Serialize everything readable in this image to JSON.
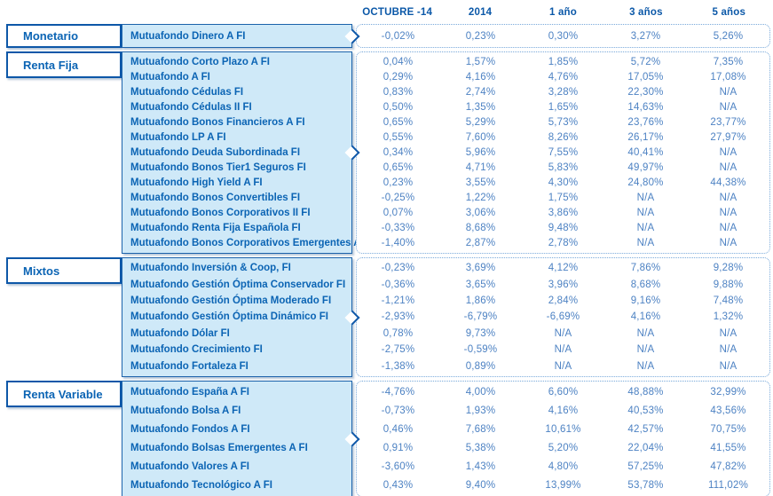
{
  "table": {
    "columns": [
      "OCTUBRE -14",
      "2014",
      "1 año",
      "3 años",
      "5 años"
    ],
    "sections": [
      {
        "category": "Monetario",
        "funds": [
          {
            "name": "Mutuafondo Dinero A FI",
            "values": [
              "-0,02%",
              "0,23%",
              "0,30%",
              "3,27%",
              "5,26%"
            ]
          }
        ]
      },
      {
        "category": "Renta Fija",
        "funds": [
          {
            "name": "Mutuafondo Corto Plazo A FI",
            "values": [
              "0,04%",
              "1,57%",
              "1,85%",
              "5,72%",
              "7,35%"
            ]
          },
          {
            "name": "Mutuafondo A FI",
            "values": [
              "0,29%",
              "4,16%",
              "4,76%",
              "17,05%",
              "17,08%"
            ]
          },
          {
            "name": "Mutuafondo Cédulas FI",
            "values": [
              "0,83%",
              "2,74%",
              "3,28%",
              "22,30%",
              "N/A"
            ]
          },
          {
            "name": "Mutuafondo Cédulas II FI",
            "values": [
              "0,50%",
              "1,35%",
              "1,65%",
              "14,63%",
              "N/A"
            ]
          },
          {
            "name": "Mutuafondo Bonos Financieros A FI",
            "values": [
              "0,65%",
              "5,29%",
              "5,73%",
              "23,76%",
              "23,77%"
            ]
          },
          {
            "name": "Mutuafondo LP A FI",
            "values": [
              "0,55%",
              "7,60%",
              "8,26%",
              "26,17%",
              "27,97%"
            ]
          },
          {
            "name": "Mutuafondo Deuda Subordinada FI",
            "values": [
              "0,34%",
              "5,96%",
              "7,55%",
              "40,41%",
              "N/A"
            ]
          },
          {
            "name": "Mutuafondo Bonos Tier1 Seguros FI",
            "values": [
              "0,65%",
              "4,71%",
              "5,83%",
              "49,97%",
              "N/A"
            ]
          },
          {
            "name": "Mutuafondo High Yield A FI",
            "values": [
              "0,23%",
              "3,55%",
              "4,30%",
              "24,80%",
              "44,38%"
            ]
          },
          {
            "name": "Mutuafondo Bonos Convertibles FI",
            "values": [
              "-0,25%",
              "1,22%",
              "1,75%",
              "N/A",
              "N/A"
            ]
          },
          {
            "name": "Mutuafondo Bonos Corporativos II FI",
            "values": [
              "0,07%",
              "3,06%",
              "3,86%",
              "N/A",
              "N/A"
            ]
          },
          {
            "name": "Mutuafondo Renta Fija Española FI",
            "values": [
              "-0,33%",
              "8,68%",
              "9,48%",
              "N/A",
              "N/A"
            ]
          },
          {
            "name": "Mutuafondo Bonos Corporativos Emergentes A FI",
            "values": [
              "-1,40%",
              "2,87%",
              "2,78%",
              "N/A",
              "N/A"
            ]
          }
        ]
      },
      {
        "category": "Mixtos",
        "funds": [
          {
            "name": "Mutuafondo Inversión & Coop, FI",
            "values": [
              "-0,23%",
              "3,69%",
              "4,12%",
              "7,86%",
              "9,28%"
            ]
          },
          {
            "name": "Mutuafondo Gestión Óptima Conservador FI",
            "values": [
              "-0,36%",
              "3,65%",
              "3,96%",
              "8,68%",
              "9,88%"
            ]
          },
          {
            "name": "Mutuafondo Gestión Óptima Moderado FI",
            "values": [
              "-1,21%",
              "1,86%",
              "2,84%",
              "9,16%",
              "7,48%"
            ]
          },
          {
            "name": "Mutuafondo Gestión Óptima Dinámico FI",
            "values": [
              "-2,93%",
              "-6,79%",
              "-6,69%",
              "4,16%",
              "1,32%"
            ]
          },
          {
            "name": "Mutuafondo Dólar FI",
            "values": [
              "0,78%",
              "9,73%",
              "N/A",
              "N/A",
              "N/A"
            ]
          },
          {
            "name": "Mutuafondo Crecimiento FI",
            "values": [
              "-2,75%",
              "-0,59%",
              "N/A",
              "N/A",
              "N/A"
            ]
          },
          {
            "name": "Mutuafondo Fortaleza FI",
            "values": [
              "-1,38%",
              "0,89%",
              "N/A",
              "N/A",
              "N/A"
            ]
          }
        ]
      },
      {
        "category": "Renta Variable",
        "funds": [
          {
            "name": "Mutuafondo España A FI",
            "values": [
              "-4,76%",
              "4,00%",
              "6,60%",
              "48,88%",
              "32,99%"
            ]
          },
          {
            "name": "Mutuafondo Bolsa A FI",
            "values": [
              "-0,73%",
              "1,93%",
              "4,16%",
              "40,53%",
              "43,56%"
            ]
          },
          {
            "name": "Mutuafondo Fondos A FI",
            "values": [
              "0,46%",
              "7,68%",
              "10,61%",
              "42,57%",
              "70,75%"
            ]
          },
          {
            "name": "Mutuafondo Bolsas Emergentes A FI",
            "values": [
              "0,91%",
              "5,38%",
              "5,20%",
              "22,04%",
              "41,55%"
            ]
          },
          {
            "name": "Mutuafondo Valores A FI",
            "values": [
              "-3,60%",
              "1,43%",
              "4,80%",
              "57,25%",
              "47,82%"
            ]
          },
          {
            "name": "Mutuafondo Tecnológico A FI",
            "values": [
              "0,43%",
              "9,40%",
              "13,99%",
              "53,78%",
              "111,02%"
            ]
          }
        ]
      }
    ],
    "na_label": "N/A"
  },
  "colors": {
    "border_dark_blue": "#0d57a8",
    "fund_box_fill": "#cfe9f8",
    "label_text_blue": "#0b64b4",
    "value_text_blue": "#4d82c3",
    "dotted_border_blue": "#79a9da"
  }
}
